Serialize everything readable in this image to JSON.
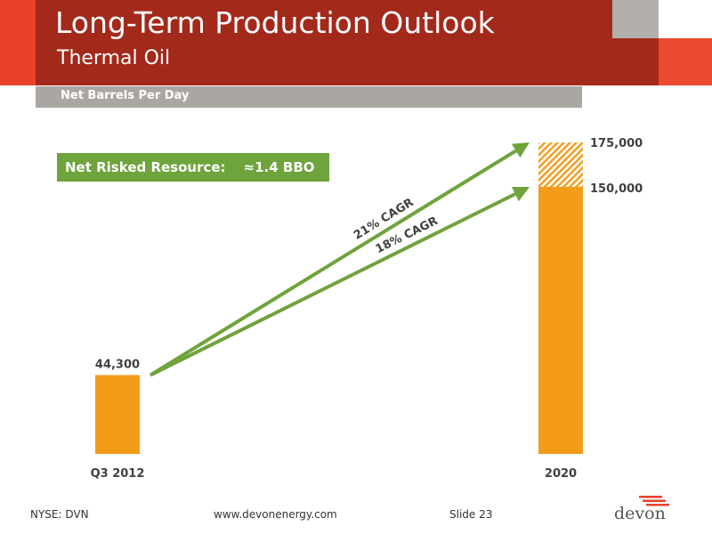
{
  "slide": {
    "title": "Long-Term Production Outlook",
    "subtitle": "Thermal Oil",
    "section_label": "Net Barrels Per Day",
    "callout": {
      "label": "Net Risked Resource:",
      "value": "≈1.4 BBO"
    },
    "footer": {
      "ticker": "NYSE: DVN",
      "website": "www.devonenergy.com",
      "slide_number": "Slide 23"
    },
    "logo_text": "devon"
  },
  "colors": {
    "bar": "#f39c1a",
    "upside_hatch": "#f39c1a",
    "arrow": "#6fa33b",
    "header": "#a3291b",
    "accent_red": "#e8422b",
    "grey": "#aaa7a3"
  },
  "chart_data": {
    "type": "bar",
    "ylabel": "Net Barrels Per Day",
    "categories": [
      "Q3 2012",
      "2020"
    ],
    "series": [
      {
        "values": [
          44300,
          150000
        ]
      },
      {
        "values": [
          0,
          25000
        ]
      }
    ],
    "data_labels": [
      "44,300",
      "175,000",
      "150,000"
    ],
    "annotations": [
      {
        "text": "21% CAGR",
        "from": "Q3 2012",
        "to": "2020",
        "target_value": 175000
      },
      {
        "text": "18% CAGR",
        "from": "Q3 2012",
        "to": "2020",
        "target_value": 150000
      }
    ],
    "ylim": [
      0,
      175000
    ],
    "grid": false,
    "legend": "none"
  }
}
